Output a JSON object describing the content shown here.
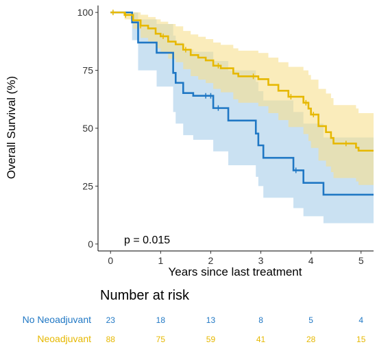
{
  "chart_data": {
    "type": "line",
    "xlabel": "Years since last treatment",
    "ylabel": "Overall Survival (%)",
    "xlim": [
      -0.25,
      5.25
    ],
    "ylim": [
      -3,
      103
    ],
    "x_ticks": [
      0,
      1,
      2,
      3,
      4,
      5
    ],
    "y_ticks": [
      0,
      25,
      50,
      75,
      100
    ],
    "grid": false,
    "annotation": "p = 0.015",
    "colors": {
      "no_neoadjuvant": "#1f77c4",
      "neoadjuvant": "#e6b800",
      "no_neoadjuvant_band": "#a6cdea",
      "neoadjuvant_band": "#f6df8e"
    },
    "series": [
      {
        "name": "No Neoadjuvant",
        "color": "#1f77c4",
        "steps": [
          [
            0,
            100
          ],
          [
            0.3,
            100
          ],
          [
            0.43,
            95.7
          ],
          [
            0.55,
            87
          ],
          [
            0.92,
            82.6
          ],
          [
            1.25,
            73.9
          ],
          [
            1.3,
            69.6
          ],
          [
            1.45,
            65.2
          ],
          [
            1.65,
            64
          ],
          [
            2.05,
            58.7
          ],
          [
            2.35,
            53.3
          ],
          [
            2.9,
            47.7
          ],
          [
            2.95,
            42.6
          ],
          [
            3.05,
            37.2
          ],
          [
            3.65,
            31.8
          ],
          [
            3.85,
            26.4
          ],
          [
            4.25,
            21.3
          ],
          [
            5.25,
            21.3
          ]
        ],
        "censor": [
          1.9,
          2.0,
          2.15,
          3.7
        ],
        "upper": [
          [
            0,
            100
          ],
          [
            0.3,
            100
          ],
          [
            0.43,
            100
          ],
          [
            0.55,
            97
          ],
          [
            0.92,
            95
          ],
          [
            1.25,
            90
          ],
          [
            1.3,
            87
          ],
          [
            1.45,
            84
          ],
          [
            1.65,
            83
          ],
          [
            2.05,
            79
          ],
          [
            2.35,
            75
          ],
          [
            2.9,
            70
          ],
          [
            2.95,
            66
          ],
          [
            3.05,
            62
          ],
          [
            3.65,
            57
          ],
          [
            3.85,
            52
          ],
          [
            4.25,
            46
          ],
          [
            5.25,
            46
          ]
        ],
        "lower": [
          [
            0,
            100
          ],
          [
            0.3,
            100
          ],
          [
            0.43,
            88
          ],
          [
            0.55,
            75
          ],
          [
            0.92,
            68
          ],
          [
            1.25,
            57
          ],
          [
            1.3,
            52
          ],
          [
            1.45,
            47
          ],
          [
            1.65,
            45
          ],
          [
            2.05,
            40
          ],
          [
            2.35,
            34
          ],
          [
            2.9,
            29
          ],
          [
            2.95,
            25
          ],
          [
            3.05,
            20
          ],
          [
            3.65,
            15.5
          ],
          [
            3.85,
            12
          ],
          [
            4.25,
            9
          ],
          [
            5.25,
            9
          ]
        ]
      },
      {
        "name": "Neoadjuvant",
        "color": "#e6b800",
        "steps": [
          [
            0,
            100
          ],
          [
            0.28,
            98.9
          ],
          [
            0.45,
            96.6
          ],
          [
            0.6,
            94.3
          ],
          [
            0.75,
            93.1
          ],
          [
            0.9,
            90.8
          ],
          [
            1.0,
            89.7
          ],
          [
            1.15,
            87.4
          ],
          [
            1.3,
            86.2
          ],
          [
            1.45,
            83.9
          ],
          [
            1.6,
            81.6
          ],
          [
            1.75,
            80.5
          ],
          [
            1.9,
            79.3
          ],
          [
            2.05,
            77
          ],
          [
            2.2,
            75.9
          ],
          [
            2.45,
            73.6
          ],
          [
            2.55,
            72.4
          ],
          [
            2.95,
            71.2
          ],
          [
            3.15,
            68.7
          ],
          [
            3.35,
            66.2
          ],
          [
            3.55,
            63.6
          ],
          [
            3.85,
            61
          ],
          [
            3.95,
            58.5
          ],
          [
            4.0,
            55.9
          ],
          [
            4.15,
            50.9
          ],
          [
            4.3,
            48.3
          ],
          [
            4.4,
            45.8
          ],
          [
            4.45,
            43.4
          ],
          [
            4.9,
            41.6
          ],
          [
            4.95,
            40.3
          ],
          [
            5.25,
            40.3
          ]
        ],
        "censor": [
          0.05,
          0.3,
          0.6,
          1.05,
          1.5,
          2.15,
          2.85,
          3.6,
          3.9,
          4.05,
          4.7
        ],
        "upper": [
          [
            0,
            100
          ],
          [
            0.28,
            100
          ],
          [
            0.45,
            100
          ],
          [
            0.6,
            99
          ],
          [
            0.75,
            98
          ],
          [
            0.9,
            97
          ],
          [
            1.0,
            96
          ],
          [
            1.15,
            95
          ],
          [
            1.3,
            94
          ],
          [
            1.45,
            92
          ],
          [
            1.6,
            90.5
          ],
          [
            1.75,
            89.5
          ],
          [
            1.9,
            88.5
          ],
          [
            2.05,
            87
          ],
          [
            2.2,
            86
          ],
          [
            2.45,
            84.5
          ],
          [
            2.55,
            83.5
          ],
          [
            2.95,
            82.5
          ],
          [
            3.15,
            80.5
          ],
          [
            3.35,
            78.5
          ],
          [
            3.55,
            76.5
          ],
          [
            3.85,
            75
          ],
          [
            3.95,
            73
          ],
          [
            4.0,
            71
          ],
          [
            4.15,
            67
          ],
          [
            4.3,
            65
          ],
          [
            4.4,
            63
          ],
          [
            4.45,
            60
          ],
          [
            4.9,
            58.5
          ],
          [
            4.95,
            56.5
          ],
          [
            5.25,
            56.5
          ]
        ],
        "lower": [
          [
            0,
            100
          ],
          [
            0.28,
            97
          ],
          [
            0.45,
            93
          ],
          [
            0.6,
            89
          ],
          [
            0.75,
            87.5
          ],
          [
            0.9,
            84.5
          ],
          [
            1.0,
            83
          ],
          [
            1.15,
            80
          ],
          [
            1.3,
            78.5
          ],
          [
            1.45,
            75.5
          ],
          [
            1.6,
            72.5
          ],
          [
            1.75,
            71
          ],
          [
            1.9,
            69.5
          ],
          [
            2.05,
            67
          ],
          [
            2.2,
            65.5
          ],
          [
            2.45,
            62.5
          ],
          [
            2.55,
            61
          ],
          [
            2.95,
            59.5
          ],
          [
            3.15,
            56.5
          ],
          [
            3.35,
            53.5
          ],
          [
            3.55,
            50.5
          ],
          [
            3.85,
            47.5
          ],
          [
            3.95,
            44.5
          ],
          [
            4.0,
            41.5
          ],
          [
            4.15,
            36
          ],
          [
            4.3,
            33.5
          ],
          [
            4.4,
            31
          ],
          [
            4.45,
            28.5
          ],
          [
            4.9,
            27
          ],
          [
            4.95,
            25.5
          ],
          [
            5.25,
            25.5
          ]
        ]
      }
    ]
  },
  "risk_table": {
    "title": "Number at risk",
    "rows": [
      {
        "label": "No Neoadjuvant",
        "color": "#1f77c4",
        "values": [
          23,
          18,
          13,
          8,
          5,
          4
        ]
      },
      {
        "label": "Neoadjuvant",
        "color": "#e6b800",
        "values": [
          88,
          75,
          59,
          41,
          28,
          15
        ]
      }
    ]
  }
}
